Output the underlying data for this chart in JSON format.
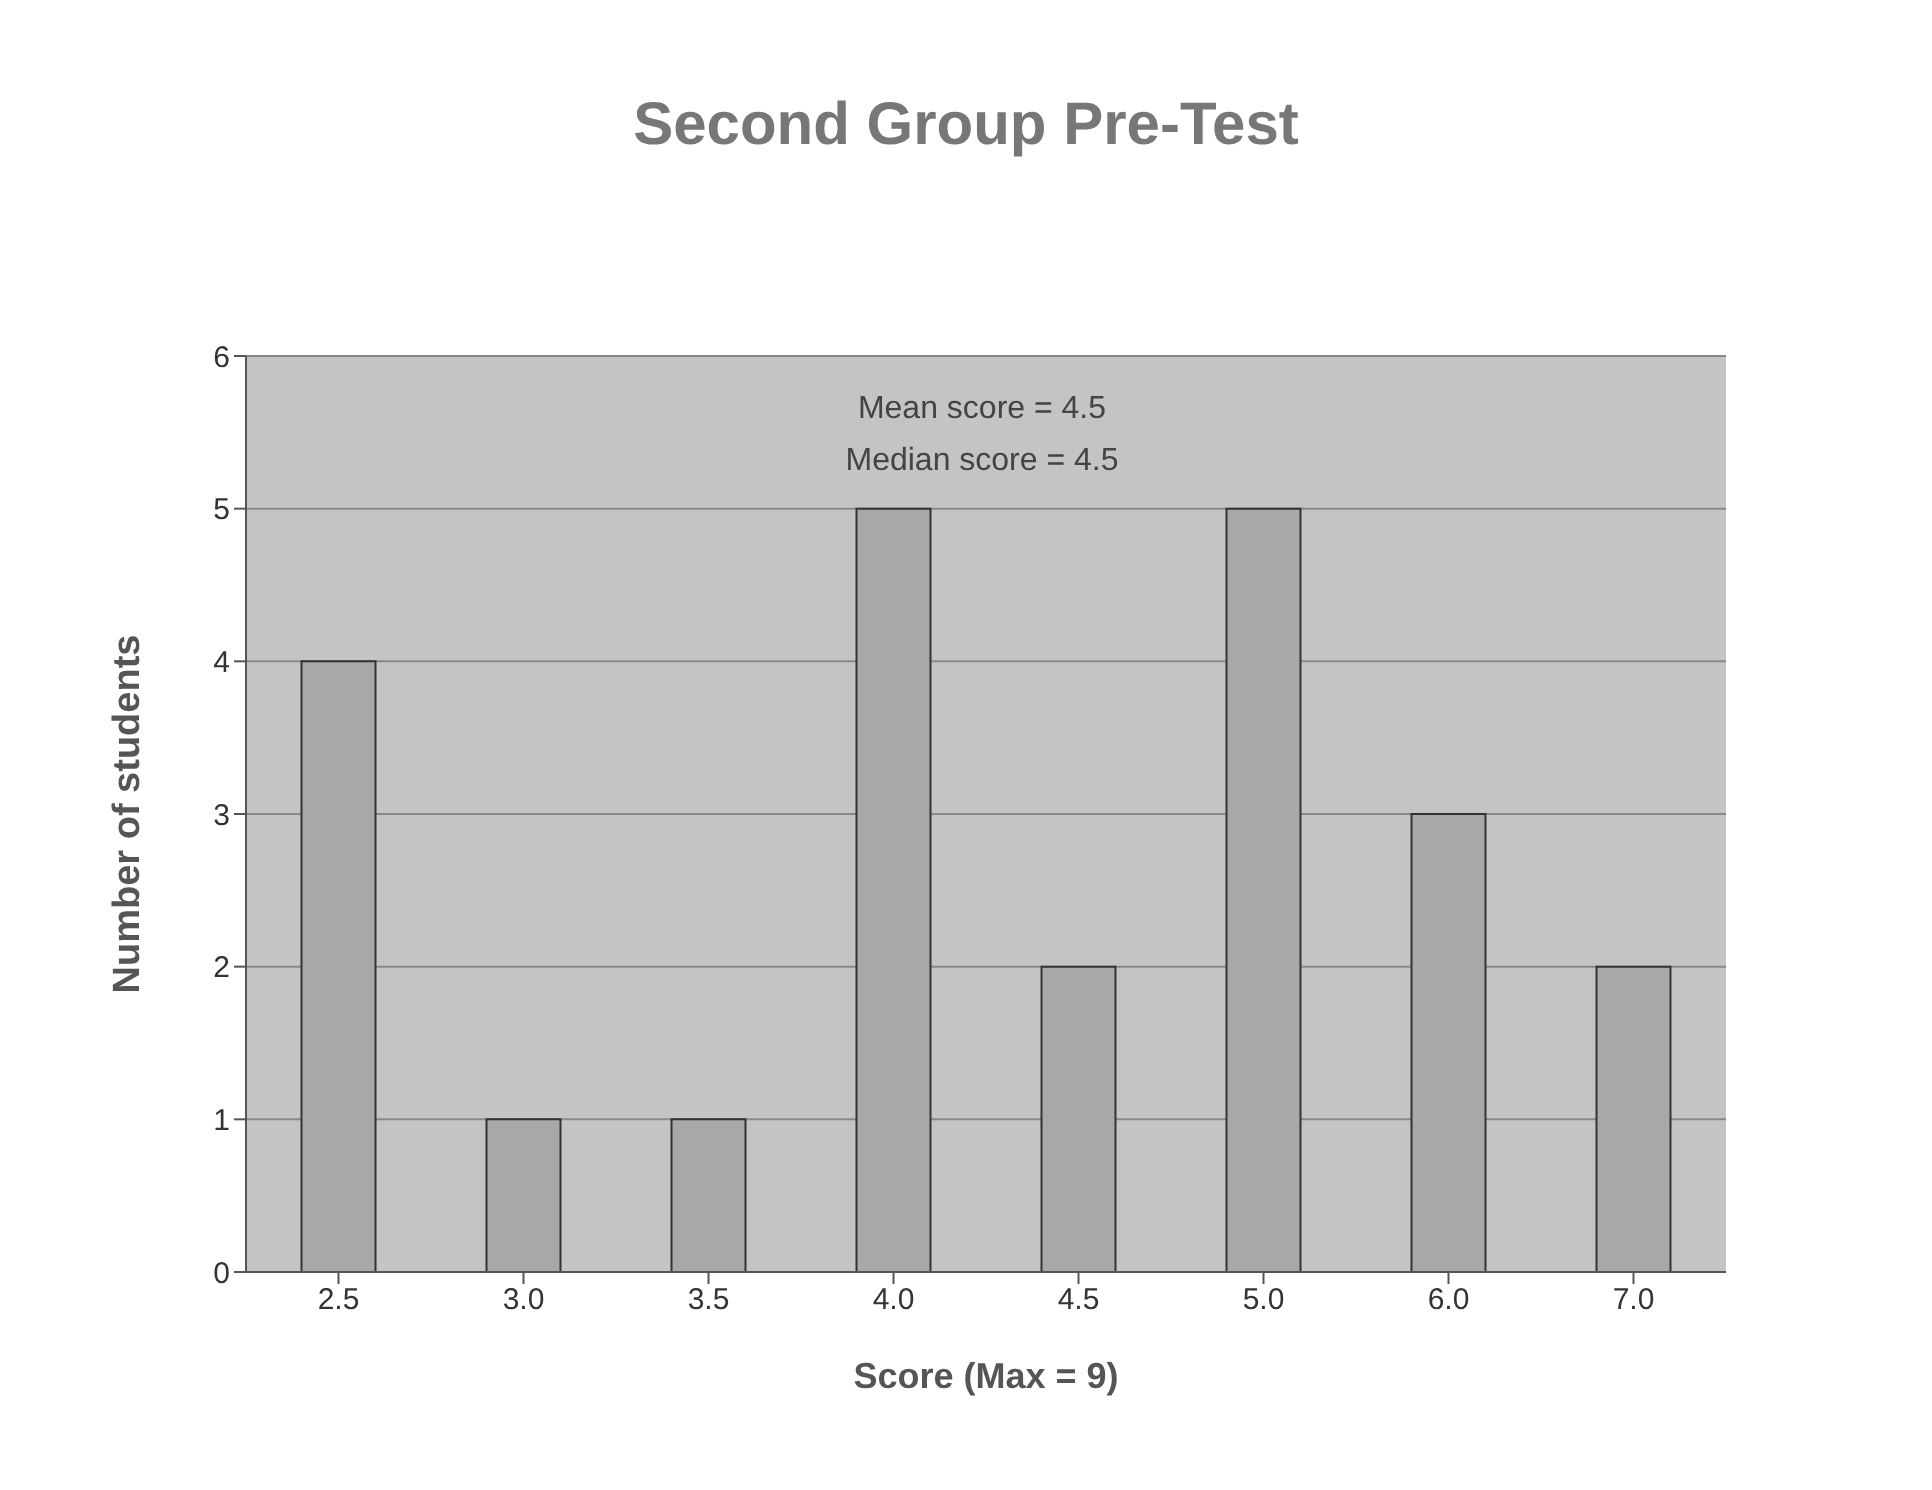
{
  "chart_data": {
    "type": "bar",
    "title": "Second Group Pre-Test",
    "xlabel": "Score (Max = 9)",
    "ylabel": "Number of students",
    "categories": [
      "2.5",
      "3.0",
      "3.5",
      "4.0",
      "4.5",
      "5.0",
      "6.0",
      "7.0"
    ],
    "series": [
      {
        "color": "#a8a8a8",
        "values": [
          4,
          1,
          1,
          5,
          2,
          5,
          3,
          2
        ]
      }
    ],
    "ylim": [
      0,
      6
    ],
    "yticks": [
      0,
      1,
      2,
      3,
      4,
      5,
      6
    ],
    "grid": "y",
    "annotations": [
      "Mean score = 4.5",
      "Median score = 4.5"
    ]
  }
}
